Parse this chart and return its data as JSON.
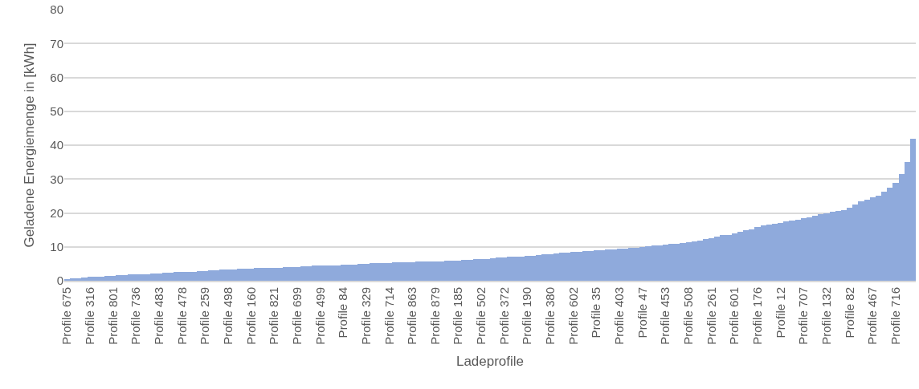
{
  "chart_data": {
    "type": "bar",
    "xlabel": "Ladeprofile",
    "ylabel": "Geladene Energiemenge in [kWh]",
    "categories": [
      "Profile 675",
      null,
      null,
      null,
      "Profile 316",
      null,
      null,
      null,
      "Profile 801",
      null,
      null,
      null,
      "Profile 736",
      null,
      null,
      null,
      "Profile 483",
      null,
      null,
      null,
      "Profile 478",
      null,
      null,
      null,
      "Profile 259",
      null,
      null,
      null,
      "Profile 498",
      null,
      null,
      null,
      "Profile 160",
      null,
      null,
      null,
      "Profile 821",
      null,
      null,
      null,
      "Profile 699",
      null,
      null,
      null,
      "Profile 499",
      null,
      null,
      null,
      "Profile 84",
      null,
      null,
      null,
      "Profile 329",
      null,
      null,
      null,
      "Profile 714",
      null,
      null,
      null,
      "Profile 863",
      null,
      null,
      null,
      "Profile 879",
      null,
      null,
      null,
      "Profile 185",
      null,
      null,
      null,
      "Profile 502",
      null,
      null,
      null,
      "Profile 372",
      null,
      null,
      null,
      "Profile 190",
      null,
      null,
      null,
      "Profile 380",
      null,
      null,
      null,
      "Profile 602",
      null,
      null,
      null,
      "Profile 35",
      null,
      null,
      null,
      "Profile 403",
      null,
      null,
      null,
      "Profile 47",
      null,
      null,
      null,
      "Profile 453",
      null,
      null,
      null,
      "Profile 508",
      null,
      null,
      null,
      "Profile 261",
      null,
      null,
      null,
      "Profile 601",
      null,
      null,
      null,
      "Profile 176",
      null,
      null,
      null,
      "Profile 12",
      null,
      null,
      null,
      "Profile 707",
      null,
      null,
      null,
      "Profile 132",
      null,
      null,
      null,
      "Profile 82",
      null,
      null,
      null,
      "Profile 467",
      null,
      null,
      null,
      "Profile 716",
      null,
      null,
      null
    ],
    "values": [
      0.5,
      0.6,
      0.8,
      1.0,
      1.1,
      1.2,
      1.3,
      1.4,
      1.5,
      1.6,
      1.7,
      1.8,
      1.9,
      1.9,
      2.0,
      2.1,
      2.2,
      2.3,
      2.4,
      2.5,
      2.6,
      2.6,
      2.7,
      2.8,
      2.9,
      3.0,
      3.1,
      3.2,
      3.3,
      3.4,
      3.5,
      3.6,
      3.6,
      3.7,
      3.7,
      3.8,
      3.8,
      3.9,
      4.0,
      4.0,
      4.1,
      4.2,
      4.3,
      4.4,
      4.5,
      4.5,
      4.6,
      4.6,
      4.7,
      4.7,
      4.8,
      4.9,
      5.0,
      5.1,
      5.2,
      5.3,
      5.3,
      5.4,
      5.4,
      5.5,
      5.5,
      5.6,
      5.6,
      5.7,
      5.7,
      5.8,
      5.9,
      5.9,
      6.0,
      6.1,
      6.2,
      6.3,
      6.4,
      6.5,
      6.7,
      6.8,
      6.9,
      7.0,
      7.1,
      7.2,
      7.3,
      7.4,
      7.5,
      7.7,
      7.9,
      8.1,
      8.3,
      8.4,
      8.5,
      8.6,
      8.7,
      8.8,
      9.0,
      9.1,
      9.2,
      9.3,
      9.4,
      9.5,
      9.7,
      9.8,
      10.0,
      10.1,
      10.3,
      10.5,
      10.7,
      10.8,
      10.9,
      11.1,
      11.3,
      11.6,
      11.9,
      12.2,
      12.6,
      13.0,
      13.4,
      13.6,
      14.0,
      14.4,
      14.8,
      15.2,
      15.8,
      16.4,
      16.6,
      16.8,
      17.1,
      17.5,
      17.8,
      18.1,
      18.5,
      18.8,
      19.2,
      19.6,
      20.0,
      20.3,
      20.6,
      20.9,
      21.6,
      22.5,
      23.4,
      24.0,
      24.5,
      25.1,
      26.2,
      27.5,
      28.9,
      31.5,
      35,
      42
    ],
    "color": "#8faadc",
    "ylim": [
      0,
      80
    ],
    "yticks": [
      0,
      10,
      20,
      30,
      40,
      50,
      60,
      70,
      80
    ],
    "grid": "y"
  }
}
